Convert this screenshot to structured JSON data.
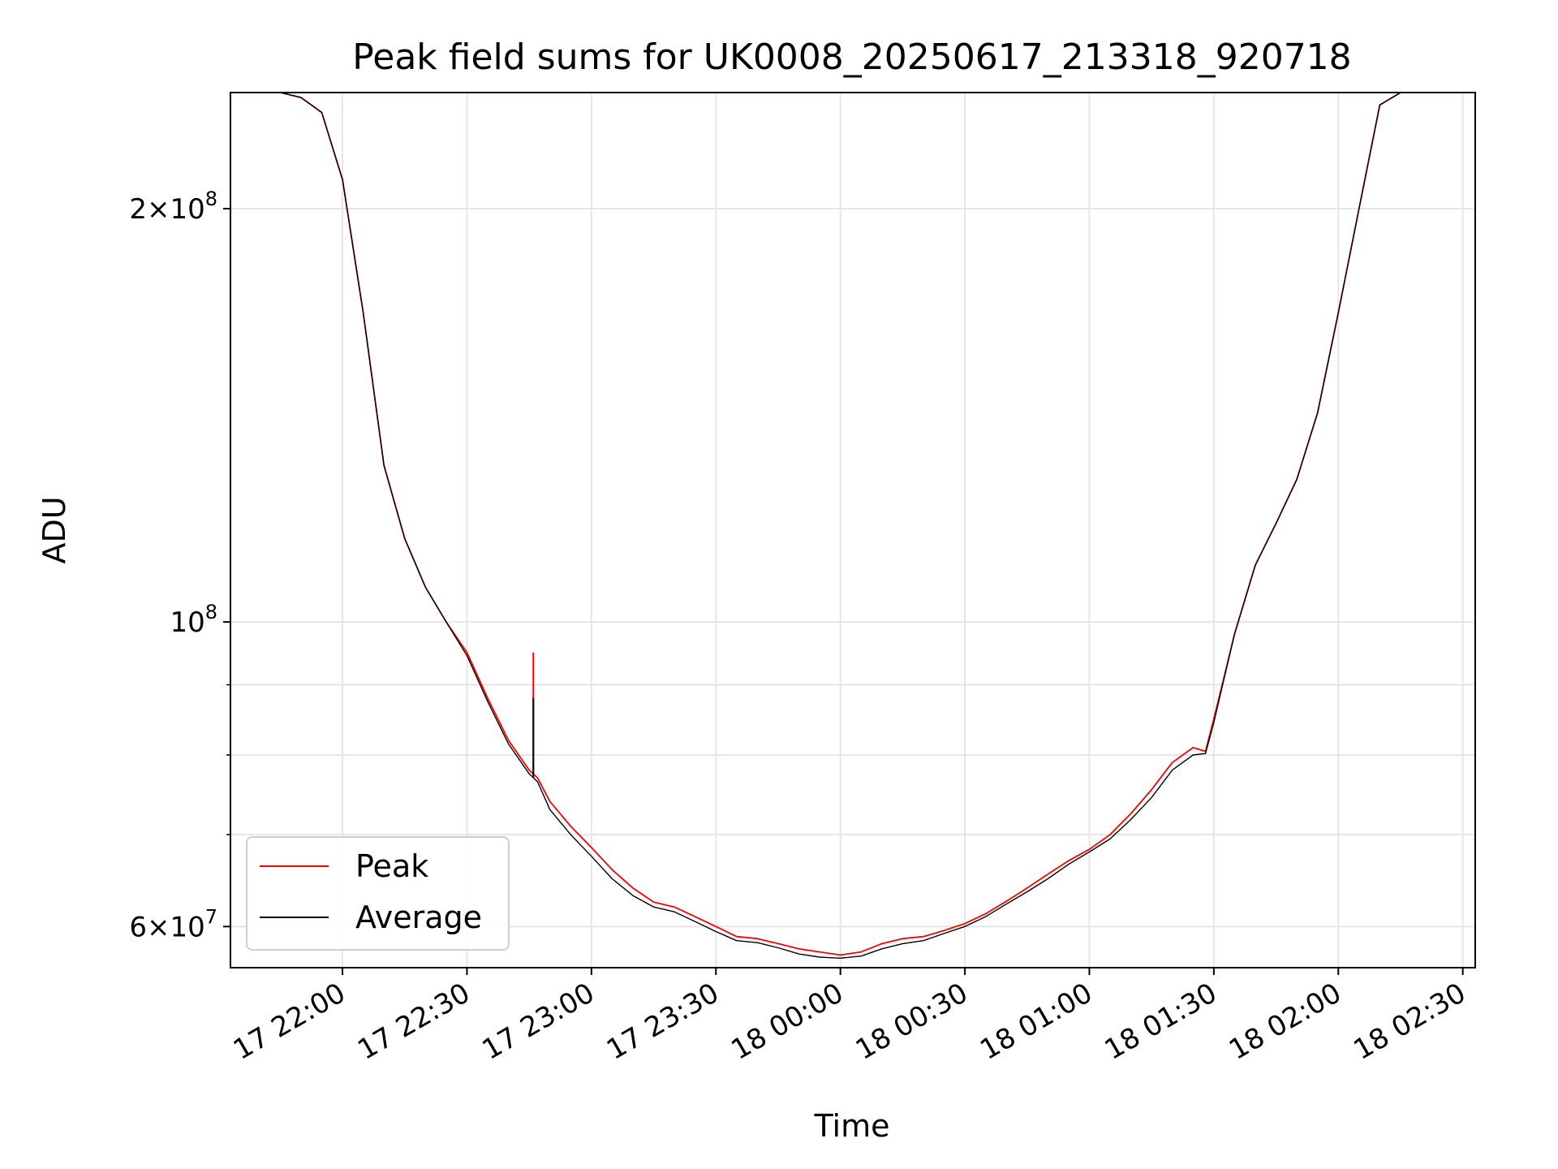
{
  "chart_data": {
    "type": "line",
    "title": "Peak field sums for UK0008_20250617_213318_920718",
    "xlabel": "Time",
    "ylabel": "ADU",
    "y_scale": "log",
    "xlim": [
      "2025-06-17 21:33",
      "2025-06-18 02:33"
    ],
    "ylim": [
      56000000,
      243000000
    ],
    "x_ticks": [
      "17 22:00",
      "17 22:30",
      "17 23:00",
      "17 23:30",
      "18 00:00",
      "18 00:30",
      "18 01:00",
      "18 01:30",
      "18 02:00",
      "18 02:30"
    ],
    "y_ticks": [
      {
        "value": 60000000,
        "mantissa": "6",
        "exponent": "7"
      },
      {
        "value": 100000000,
        "mantissa": "",
        "exponent": "8"
      },
      {
        "value": 200000000,
        "mantissa": "2",
        "exponent": "8"
      }
    ],
    "grid": true,
    "legend_position": "lower-left",
    "x": [
      "21:33",
      "21:40",
      "21:45",
      "21:50",
      "21:55",
      "22:00",
      "22:05",
      "22:10",
      "22:15",
      "22:20",
      "22:25",
      "22:30",
      "22:35",
      "22:40",
      "22:45",
      "22:47",
      "22:50",
      "22:55",
      "23:00",
      "23:05",
      "23:10",
      "23:15",
      "23:20",
      "23:25",
      "23:30",
      "23:35",
      "23:40",
      "23:45",
      "23:50",
      "23:55",
      "24:00",
      "24:05",
      "24:10",
      "24:15",
      "24:20",
      "24:25",
      "24:30",
      "24:35",
      "24:40",
      "24:45",
      "24:50",
      "24:55",
      "25:00",
      "25:05",
      "25:10",
      "25:15",
      "25:20",
      "25:25",
      "25:28",
      "25:30",
      "25:35",
      "25:40",
      "25:45",
      "25:50",
      "25:55",
      "26:00",
      "26:05",
      "26:10",
      "26:15",
      "26:20",
      "26:25"
    ],
    "series": [
      {
        "name": "Peak",
        "color": "#ff0000",
        "values": [
          243000000,
          243000000,
          243000000,
          241000000,
          235000000,
          210000000,
          168000000,
          130000000,
          115000000,
          106000000,
          100000000,
          95000000,
          88000000,
          82000000,
          78000000,
          77000000,
          74000000,
          71000000,
          68500000,
          66000000,
          64000000,
          62500000,
          62000000,
          61000000,
          60000000,
          59000000,
          58800000,
          58300000,
          57800000,
          57500000,
          57200000,
          57500000,
          58300000,
          58800000,
          59000000,
          59600000,
          60300000,
          61300000,
          62600000,
          64000000,
          65500000,
          67000000,
          68300000,
          70000000,
          72500000,
          75500000,
          79000000,
          81000000,
          80500000,
          85000000,
          98000000,
          110000000,
          118000000,
          127000000,
          142000000,
          168000000,
          200000000,
          238000000,
          243000000,
          243000000,
          243000000
        ]
      },
      {
        "name": "Average",
        "color": "#000000",
        "values": [
          243000000,
          243000000,
          243000000,
          241000000,
          235000000,
          210000000,
          168000000,
          130000000,
          115000000,
          106000000,
          100000000,
          94500000,
          87500000,
          81500000,
          77500000,
          76500000,
          73000000,
          70000000,
          67500000,
          65000000,
          63200000,
          62000000,
          61500000,
          60500000,
          59500000,
          58600000,
          58400000,
          57900000,
          57300000,
          57000000,
          56900000,
          57100000,
          57800000,
          58300000,
          58600000,
          59300000,
          60000000,
          61000000,
          62300000,
          63600000,
          65000000,
          66600000,
          68000000,
          69500000,
          71800000,
          74500000,
          78000000,
          80000000,
          80200000,
          84500000,
          98000000,
          110000000,
          118000000,
          127000000,
          142000000,
          168000000,
          200000000,
          238000000,
          243000000,
          243000000,
          243000000
        ]
      }
    ],
    "spikes": [
      {
        "series": "Peak",
        "x": "22:46",
        "y": 95000000
      },
      {
        "series": "Average",
        "x": "22:46",
        "y": 88000000
      }
    ]
  }
}
